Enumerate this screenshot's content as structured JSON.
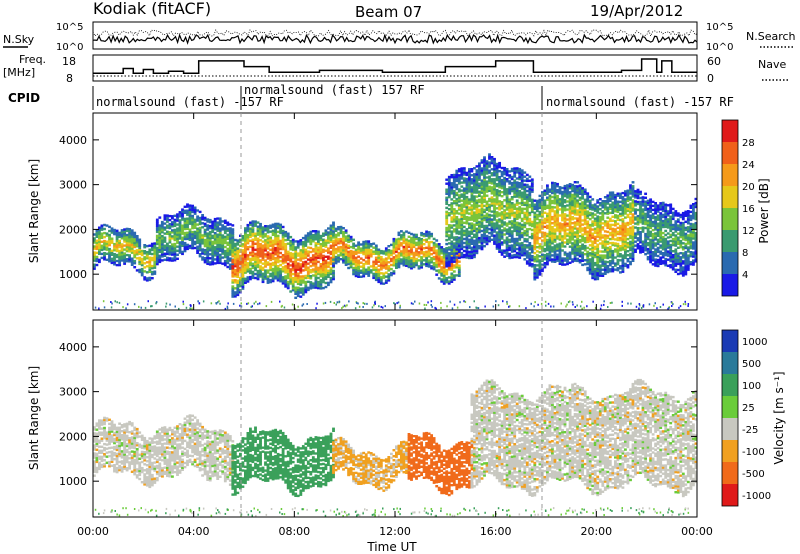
{
  "header": {
    "title": "Kodiak (fitACF)",
    "beam": "Beam 07",
    "date": "19/Apr/2012"
  },
  "summary_panels": {
    "nsky": {
      "left_label": "N.Sky",
      "left_ticks": [
        "10^5",
        "10^0"
      ],
      "right_label": "N.Search",
      "right_ticks": [
        "10^5",
        "10^0"
      ]
    },
    "freq": {
      "left_label_1": "Freq.",
      "left_label_2": "[MHz]",
      "left_ticks": [
        "18",
        "8"
      ],
      "right_label": "Nave",
      "right_ticks": [
        "60",
        "0"
      ]
    },
    "cpid": {
      "label": "CPID",
      "segments": [
        {
          "text": "normalsound (fast) -157 RF",
          "start_hour": 0
        },
        {
          "text": "normalsound (fast) 157 RF",
          "start_hour": 6
        },
        {
          "text": "normalsound (fast) -157 RF",
          "start_hour": 18
        }
      ]
    }
  },
  "power_panel": {
    "ylabel": "Slant Range [km]",
    "yticks": [
      "1000",
      "2000",
      "3000",
      "4000"
    ],
    "colorbar_label": "Power [dB]",
    "colorbar_ticks": [
      "4",
      "8",
      "12",
      "16",
      "20",
      "24",
      "28"
    ],
    "colors": [
      "#1a1ae6",
      "#2a6ab0",
      "#3a9a70",
      "#7ac43a",
      "#e6c81a",
      "#f59a1a",
      "#f0601a",
      "#e01a1a"
    ]
  },
  "velocity_panel": {
    "ylabel": "Slant Range [km]",
    "yticks": [
      "1000",
      "2000",
      "3000",
      "4000"
    ],
    "colorbar_label": "Velocity [m s⁻¹]",
    "colorbar_ticks": [
      "1000",
      "500",
      "100",
      "25",
      "-25",
      "-100",
      "-500",
      "-1000"
    ],
    "colors": [
      "#1a3ab4",
      "#2a7a9a",
      "#3aa05a",
      "#6acc3a",
      "#c8c8c0",
      "#f0a020",
      "#f06a1a",
      "#e01a1a"
    ]
  },
  "x_axis": {
    "label": "Time UT",
    "ticks": [
      "00:00",
      "04:00",
      "08:00",
      "12:00",
      "16:00",
      "20:00",
      "00:00"
    ]
  },
  "chart_data": {
    "type": "heatmap",
    "title": "Kodiak (fitACF)",
    "subtitle": "Beam 07",
    "x_unit": "hours UT",
    "xlim": [
      0,
      24
    ],
    "ylim": [
      200,
      4600
    ],
    "freq_mhz": [
      [
        0,
        10.5
      ],
      [
        1.2,
        13
      ],
      [
        1.6,
        10.5
      ],
      [
        2.0,
        12.5
      ],
      [
        2.4,
        10.5
      ],
      [
        3.0,
        11.5
      ],
      [
        3.6,
        10.5
      ],
      [
        4.2,
        17
      ],
      [
        6.0,
        14
      ],
      [
        7.0,
        11
      ],
      [
        9.0,
        12
      ],
      [
        11.5,
        11
      ],
      [
        14.0,
        14
      ],
      [
        16.0,
        17
      ],
      [
        17.5,
        11
      ],
      [
        19.5,
        11
      ],
      [
        21.0,
        12
      ],
      [
        21.8,
        18
      ],
      [
        22.4,
        11
      ],
      [
        22.6,
        17
      ],
      [
        23.0,
        11
      ]
    ],
    "power_bands": [
      {
        "x0": 0.0,
        "x1": 2.5,
        "r0": 1100,
        "r1": 1900,
        "peak_db": 20
      },
      {
        "x0": 2.5,
        "x1": 5.5,
        "r0": 1300,
        "r1": 2300,
        "peak_db": 14
      },
      {
        "x0": 5.5,
        "x1": 9.5,
        "r0": 700,
        "r1": 2000,
        "peak_db": 28
      },
      {
        "x0": 9.5,
        "x1": 14.5,
        "r0": 1000,
        "r1": 1800,
        "peak_db": 26
      },
      {
        "x0": 14.0,
        "x1": 17.5,
        "r0": 1400,
        "r1": 3400,
        "peak_db": 16
      },
      {
        "x0": 17.5,
        "x1": 21.5,
        "r0": 1100,
        "r1": 2900,
        "peak_db": 22
      },
      {
        "x0": 21.5,
        "x1": 24.0,
        "r0": 1200,
        "r1": 2600,
        "peak_db": 12
      }
    ],
    "velocity_bands": [
      {
        "x0": 0.0,
        "x1": 5.5,
        "r0": 1100,
        "r1": 2200,
        "vel": 0
      },
      {
        "x0": 5.5,
        "x1": 9.5,
        "r0": 900,
        "r1": 2000,
        "vel": 150
      },
      {
        "x0": 9.5,
        "x1": 12.5,
        "r0": 1000,
        "r1": 1700,
        "vel": -40
      },
      {
        "x0": 12.5,
        "x1": 15.0,
        "r0": 900,
        "r1": 1900,
        "vel": -150
      },
      {
        "x0": 15.0,
        "x1": 24.0,
        "r0": 900,
        "r1": 3000,
        "vel": 0
      }
    ]
  }
}
